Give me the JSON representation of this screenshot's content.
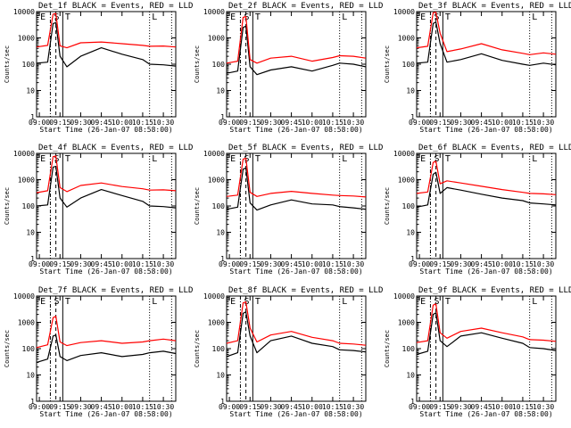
{
  "figure": {
    "xtitle": "Start Time (26-Jan-07 08:58:00)",
    "ylabel": "Counts/sec",
    "series_colors": {
      "events": "#000000",
      "lld": "#ff0000"
    }
  },
  "chart_data": [
    {
      "type": "line",
      "title": "Det_1f BLACK = Events, RED = LLD",
      "xlabel": "Start Time (26-Jan-07 08:58:00)",
      "ylabel": "Counts/sec",
      "yscale": "log",
      "ylim": [
        1,
        10000
      ],
      "xlim": [
        "08:58",
        "10:39"
      ],
      "x_ticks": [
        "09:00",
        "09:15",
        "09:30",
        "09:45",
        "10:00",
        "10:15",
        "10:30"
      ],
      "y_ticks": [
        "1",
        "10",
        "100",
        "1000",
        "10000"
      ],
      "annotations": [
        "E",
        "S",
        "T",
        "L"
      ],
      "x": [
        "08:58",
        "09:06",
        "09:10",
        "09:12",
        "09:15",
        "09:20",
        "09:30",
        "09:45",
        "10:00",
        "10:15",
        "10:20",
        "10:30",
        "10:39"
      ],
      "series": [
        {
          "values": [
            110,
            120,
            3500,
            3800,
            200,
            80,
            200,
            420,
            240,
            150,
            100,
            95,
            85
          ]
        },
        {
          "values": [
            450,
            520,
            8000,
            8500,
            500,
            420,
            650,
            700,
            600,
            520,
            480,
            490,
            450
          ]
        }
      ]
    },
    {
      "type": "line",
      "title": "Det_2f BLACK = Events, RED = LLD",
      "xlabel": "Start Time (26-Jan-07 08:58:00)",
      "ylabel": "Counts/sec",
      "yscale": "log",
      "ylim": [
        1,
        10000
      ],
      "xlim": [
        "08:58",
        "10:39"
      ],
      "x_ticks": [
        "09:00",
        "09:15",
        "09:30",
        "09:45",
        "10:00",
        "10:15",
        "10:30"
      ],
      "y_ticks": [
        "1",
        "10",
        "100",
        "1000",
        "10000"
      ],
      "annotations": [
        "E",
        "S",
        "T",
        "L"
      ],
      "x": [
        "08:58",
        "09:06",
        "09:10",
        "09:12",
        "09:15",
        "09:20",
        "09:30",
        "09:45",
        "10:00",
        "10:15",
        "10:20",
        "10:30",
        "10:39"
      ],
      "series": [
        {
          "values": [
            45,
            55,
            2500,
            2800,
            80,
            40,
            60,
            80,
            55,
            90,
            110,
            100,
            80
          ]
        },
        {
          "values": [
            110,
            130,
            6000,
            6500,
            150,
            110,
            170,
            200,
            130,
            180,
            210,
            200,
            170
          ]
        }
      ]
    },
    {
      "type": "line",
      "title": "Det_3f BLACK = Events, RED = LLD",
      "xlabel": "Start Time (26-Jan-07 08:58:00)",
      "ylabel": "Counts/sec",
      "yscale": "log",
      "ylim": [
        1,
        10000
      ],
      "xlim": [
        "08:58",
        "10:39"
      ],
      "x_ticks": [
        "09:00",
        "09:15",
        "09:30",
        "09:45",
        "10:00",
        "10:15",
        "10:30"
      ],
      "y_ticks": [
        "1",
        "10",
        "100",
        "1000",
        "10000"
      ],
      "annotations": [
        "E",
        "S",
        "T",
        "L"
      ],
      "x": [
        "08:58",
        "09:06",
        "09:10",
        "09:12",
        "09:15",
        "09:20",
        "09:30",
        "09:45",
        "10:00",
        "10:15",
        "10:20",
        "10:30",
        "10:39"
      ],
      "series": [
        {
          "values": [
            110,
            120,
            3500,
            4000,
            600,
            120,
            150,
            250,
            140,
            100,
            90,
            110,
            95
          ]
        },
        {
          "values": [
            420,
            480,
            9000,
            9500,
            1500,
            300,
            380,
            600,
            350,
            260,
            230,
            270,
            240
          ]
        }
      ]
    },
    {
      "type": "line",
      "title": "Det_4f BLACK = Events, RED = LLD",
      "xlabel": "Start Time (26-Jan-07 08:58:00)",
      "ylabel": "Counts/sec",
      "yscale": "log",
      "ylim": [
        1,
        10000
      ],
      "xlim": [
        "08:58",
        "10:39"
      ],
      "x_ticks": [
        "09:00",
        "09:15",
        "09:30",
        "09:45",
        "10:00",
        "10:15",
        "10:30"
      ],
      "y_ticks": [
        "1",
        "10",
        "100",
        "1000",
        "10000"
      ],
      "annotations": [
        "E",
        "S",
        "T",
        "L"
      ],
      "x": [
        "08:58",
        "09:06",
        "09:10",
        "09:12",
        "09:15",
        "09:20",
        "09:30",
        "09:45",
        "10:00",
        "10:15",
        "10:20",
        "10:30",
        "10:39"
      ],
      "series": [
        {
          "values": [
            100,
            110,
            3000,
            3200,
            200,
            90,
            200,
            420,
            250,
            150,
            100,
            95,
            85
          ]
        },
        {
          "values": [
            320,
            380,
            7500,
            8000,
            500,
            350,
            600,
            750,
            550,
            450,
            400,
            410,
            380
          ]
        }
      ]
    },
    {
      "type": "line",
      "title": "Det_5f BLACK = Events, RED = LLD",
      "xlabel": "Start Time (26-Jan-07 08:58:00)",
      "ylabel": "Counts/sec",
      "yscale": "log",
      "ylim": [
        1,
        10000
      ],
      "xlim": [
        "08:58",
        "10:39"
      ],
      "x_ticks": [
        "09:00",
        "09:15",
        "09:30",
        "09:45",
        "10:00",
        "10:15",
        "10:30"
      ],
      "y_ticks": [
        "1",
        "10",
        "100",
        "1000",
        "10000"
      ],
      "annotations": [
        "E",
        "S",
        "T",
        "L"
      ],
      "x": [
        "08:58",
        "09:06",
        "09:10",
        "09:12",
        "09:15",
        "09:20",
        "09:30",
        "09:45",
        "10:00",
        "10:15",
        "10:20",
        "10:30",
        "10:39"
      ],
      "series": [
        {
          "values": [
            75,
            90,
            2500,
            2800,
            130,
            70,
            110,
            170,
            120,
            110,
            95,
            85,
            75
          ]
        },
        {
          "values": [
            230,
            260,
            6000,
            6500,
            330,
            230,
            300,
            360,
            300,
            260,
            250,
            240,
            220
          ]
        }
      ]
    },
    {
      "type": "line",
      "title": "Det_6f BLACK = Events, RED = LLD",
      "xlabel": "Start Time (26-Jan-07 08:58:00)",
      "ylabel": "Counts/sec",
      "yscale": "log",
      "ylim": [
        1,
        10000
      ],
      "xlim": [
        "08:58",
        "10:39"
      ],
      "x_ticks": [
        "09:00",
        "09:15",
        "09:30",
        "09:45",
        "10:00",
        "10:15",
        "10:30"
      ],
      "y_ticks": [
        "1",
        "10",
        "100",
        "1000",
        "10000"
      ],
      "annotations": [
        "E",
        "S",
        "T",
        "L"
      ],
      "x": [
        "08:58",
        "09:06",
        "09:10",
        "09:12",
        "09:15",
        "09:20",
        "09:30",
        "09:45",
        "10:00",
        "10:15",
        "10:20",
        "10:30",
        "10:39"
      ],
      "series": [
        {
          "values": [
            90,
            110,
            1600,
            1900,
            300,
            500,
            400,
            280,
            200,
            160,
            130,
            120,
            110
          ]
        },
        {
          "values": [
            300,
            340,
            4500,
            5000,
            700,
            900,
            750,
            560,
            420,
            330,
            300,
            290,
            270
          ]
        }
      ]
    },
    {
      "type": "line",
      "title": "Det_7f BLACK = Events, RED = LLD",
      "xlabel": "Start Time (26-Jan-07 08:58:00)",
      "ylabel": "Counts/sec",
      "yscale": "log",
      "ylim": [
        1,
        10000
      ],
      "xlim": [
        "08:58",
        "10:39"
      ],
      "x_ticks": [
        "09:00",
        "09:15",
        "09:30",
        "09:45",
        "10:00",
        "10:15",
        "10:30"
      ],
      "y_ticks": [
        "1",
        "10",
        "100",
        "1000",
        "10000"
      ],
      "annotations": [
        "E",
        "S",
        "T",
        "L"
      ],
      "x": [
        "08:58",
        "09:06",
        "09:10",
        "09:12",
        "09:15",
        "09:20",
        "09:30",
        "09:45",
        "10:00",
        "10:15",
        "10:20",
        "10:30",
        "10:39"
      ],
      "series": [
        {
          "values": [
            30,
            40,
            300,
            330,
            50,
            35,
            55,
            70,
            50,
            60,
            70,
            80,
            65
          ]
        },
        {
          "values": [
            110,
            140,
            1500,
            1700,
            180,
            130,
            170,
            200,
            160,
            180,
            200,
            230,
            200
          ]
        }
      ]
    },
    {
      "type": "line",
      "title": "Det_8f BLACK = Events, RED = LLD",
      "xlabel": "Start Time (26-Jan-07 08:58:00)",
      "ylabel": "Counts/sec",
      "yscale": "log",
      "ylim": [
        1,
        10000
      ],
      "xlim": [
        "08:58",
        "10:39"
      ],
      "x_ticks": [
        "09:00",
        "09:15",
        "09:30",
        "09:45",
        "10:00",
        "10:15",
        "10:30"
      ],
      "y_ticks": [
        "1",
        "10",
        "100",
        "1000",
        "10000"
      ],
      "annotations": [
        "E",
        "S",
        "T",
        "L"
      ],
      "x": [
        "08:58",
        "09:06",
        "09:10",
        "09:12",
        "09:15",
        "09:20",
        "09:30",
        "09:45",
        "10:00",
        "10:15",
        "10:20",
        "10:30",
        "10:39"
      ],
      "series": [
        {
          "values": [
            50,
            70,
            2200,
            2500,
            300,
            70,
            200,
            300,
            160,
            120,
            90,
            85,
            75
          ]
        },
        {
          "values": [
            160,
            200,
            5500,
            6000,
            600,
            180,
            330,
            450,
            270,
            200,
            160,
            150,
            135
          ]
        }
      ]
    },
    {
      "type": "line",
      "title": "Det_9f BLACK = Events, RED = LLD",
      "xlabel": "Start Time (26-Jan-07 08:58:00)",
      "ylabel": "Counts/sec",
      "yscale": "log",
      "ylim": [
        1,
        10000
      ],
      "xlim": [
        "08:58",
        "10:39"
      ],
      "x_ticks": [
        "09:00",
        "09:15",
        "09:30",
        "09:45",
        "10:00",
        "10:15",
        "10:30"
      ],
      "y_ticks": [
        "1",
        "10",
        "100",
        "1000",
        "10000"
      ],
      "annotations": [
        "E",
        "S",
        "T",
        "L"
      ],
      "x": [
        "08:58",
        "09:06",
        "09:10",
        "09:12",
        "09:15",
        "09:20",
        "09:30",
        "09:45",
        "10:00",
        "10:15",
        "10:20",
        "10:30",
        "10:39"
      ],
      "series": [
        {
          "values": [
            60,
            80,
            2000,
            2300,
            200,
            120,
            300,
            400,
            250,
            160,
            110,
            100,
            85
          ]
        },
        {
          "values": [
            170,
            200,
            4500,
            5000,
            400,
            250,
            450,
            600,
            400,
            280,
            220,
            210,
            190
          ]
        }
      ]
    }
  ]
}
